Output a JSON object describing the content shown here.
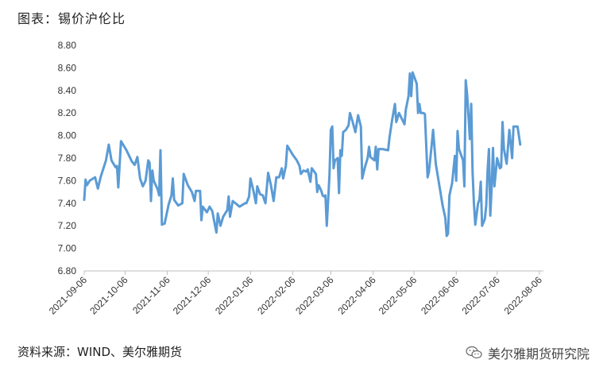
{
  "header": {
    "title": "图表：锡价沪伦比"
  },
  "footer": {
    "source": "资料来源：WIND、美尔雅期货",
    "watermark": "美尔雅期货研究院",
    "watermark_icon": "wechat-icon"
  },
  "colors": {
    "line": "#5B9BD5",
    "axis": "#BFBFBF",
    "text": "#333333"
  },
  "chart_data": {
    "type": "line",
    "title": "",
    "xlabel": "",
    "ylabel": "",
    "ylim": [
      6.8,
      8.8
    ],
    "yticks": [
      "6.80",
      "7.00",
      "7.20",
      "7.40",
      "7.60",
      "7.80",
      "8.00",
      "8.20",
      "8.40",
      "8.60",
      "8.80"
    ],
    "xticks": [
      "2021-09-06",
      "2021-10-06",
      "2021-11-06",
      "2021-12-06",
      "2022-01-06",
      "2022-02-06",
      "2022-03-06",
      "2022-04-06",
      "2022-05-06",
      "2022-06-06",
      "2022-07-06",
      "2022-08-06"
    ],
    "xlim": [
      "2021-09-06",
      "2022-08-09"
    ],
    "grid": false,
    "series": [
      {
        "points": [
          [
            "2021-09-06",
            7.43
          ],
          [
            "2021-09-07",
            7.61
          ],
          [
            "2021-09-08",
            7.56
          ],
          [
            "2021-09-10",
            7.6
          ],
          [
            "2021-09-14",
            7.63
          ],
          [
            "2021-09-16",
            7.53
          ],
          [
            "2021-09-18",
            7.63
          ],
          [
            "2021-09-22",
            7.78
          ],
          [
            "2021-09-24",
            7.92
          ],
          [
            "2021-09-26",
            7.78
          ],
          [
            "2021-09-29",
            7.72
          ],
          [
            "2021-09-30",
            7.73
          ],
          [
            "2021-10-01",
            7.54
          ],
          [
            "2021-10-03",
            7.95
          ],
          [
            "2021-10-07",
            7.87
          ],
          [
            "2021-10-11",
            7.77
          ],
          [
            "2021-10-13",
            7.74
          ],
          [
            "2021-10-15",
            7.81
          ],
          [
            "2021-10-17",
            7.62
          ],
          [
            "2021-10-19",
            7.55
          ],
          [
            "2021-10-21",
            7.6
          ],
          [
            "2021-10-23",
            7.78
          ],
          [
            "2021-10-24",
            7.76
          ],
          [
            "2021-10-25",
            7.42
          ],
          [
            "2021-10-26",
            7.69
          ],
          [
            "2021-10-27",
            7.6
          ],
          [
            "2021-10-30",
            7.52
          ],
          [
            "2021-10-31",
            7.47
          ],
          [
            "2021-11-01",
            7.87
          ],
          [
            "2021-11-02",
            7.21
          ],
          [
            "2021-11-04",
            7.22
          ],
          [
            "2021-11-07",
            7.39
          ],
          [
            "2021-11-09",
            7.47
          ],
          [
            "2021-11-10",
            7.62
          ],
          [
            "2021-11-11",
            7.43
          ],
          [
            "2021-11-14",
            7.38
          ],
          [
            "2021-11-17",
            7.4
          ],
          [
            "2021-11-18",
            7.66
          ],
          [
            "2021-11-21",
            7.56
          ],
          [
            "2021-11-24",
            7.5
          ],
          [
            "2021-11-26",
            7.42
          ],
          [
            "2021-11-27",
            7.51
          ],
          [
            "2021-11-30",
            7.51
          ],
          [
            "2021-12-01",
            7.25
          ],
          [
            "2021-12-02",
            7.37
          ],
          [
            "2021-12-05",
            7.32
          ],
          [
            "2021-12-07",
            7.37
          ],
          [
            "2021-12-09",
            7.33
          ],
          [
            "2021-12-11",
            7.2
          ],
          [
            "2021-12-12",
            7.14
          ],
          [
            "2021-12-13",
            7.31
          ],
          [
            "2021-12-15",
            7.2
          ],
          [
            "2021-12-17",
            7.28
          ],
          [
            "2021-12-20",
            7.34
          ],
          [
            "2021-12-21",
            7.46
          ],
          [
            "2021-12-22",
            7.28
          ],
          [
            "2021-12-24",
            7.42
          ],
          [
            "2021-12-27",
            7.39
          ],
          [
            "2021-12-29",
            7.37
          ],
          [
            "2022-01-02",
            7.4
          ],
          [
            "2022-01-03",
            7.4
          ],
          [
            "2022-01-05",
            7.46
          ],
          [
            "2022-01-06",
            7.62
          ],
          [
            "2022-01-08",
            7.52
          ],
          [
            "2022-01-10",
            7.4
          ],
          [
            "2022-01-11",
            7.55
          ],
          [
            "2022-01-13",
            7.48
          ],
          [
            "2022-01-15",
            7.47
          ],
          [
            "2022-01-17",
            7.4
          ],
          [
            "2022-01-19",
            7.67
          ],
          [
            "2022-01-21",
            7.56
          ],
          [
            "2022-01-23",
            7.42
          ],
          [
            "2022-01-25",
            7.63
          ],
          [
            "2022-01-27",
            7.63
          ],
          [
            "2022-01-29",
            7.71
          ],
          [
            "2022-01-30",
            7.62
          ],
          [
            "2022-02-01",
            7.73
          ],
          [
            "2022-02-02",
            7.91
          ],
          [
            "2022-02-06",
            7.83
          ],
          [
            "2022-02-09",
            7.78
          ],
          [
            "2022-02-11",
            7.73
          ],
          [
            "2022-02-12",
            7.66
          ],
          [
            "2022-02-14",
            7.69
          ],
          [
            "2022-02-16",
            7.68
          ],
          [
            "2022-02-17",
            7.7
          ],
          [
            "2022-02-19",
            7.59
          ],
          [
            "2022-02-20",
            7.71
          ],
          [
            "2022-02-23",
            7.66
          ],
          [
            "2022-02-24",
            7.5
          ],
          [
            "2022-02-25",
            7.56
          ],
          [
            "2022-02-27",
            7.51
          ],
          [
            "2022-02-28",
            7.47
          ],
          [
            "2022-03-01",
            7.46
          ],
          [
            "2022-03-02",
            7.47
          ],
          [
            "2022-03-03",
            7.2
          ],
          [
            "2022-03-05",
            7.65
          ],
          [
            "2022-03-06",
            8.05
          ],
          [
            "2022-03-07",
            8.08
          ],
          [
            "2022-03-08",
            7.71
          ],
          [
            "2022-03-09",
            7.78
          ],
          [
            "2022-03-11",
            7.8
          ],
          [
            "2022-03-12",
            7.49
          ],
          [
            "2022-03-13",
            7.87
          ],
          [
            "2022-03-14",
            7.82
          ],
          [
            "2022-03-15",
            8.03
          ],
          [
            "2022-03-17",
            8.05
          ],
          [
            "2022-03-19",
            8.09
          ],
          [
            "2022-03-20",
            8.2
          ],
          [
            "2022-03-22",
            8.12
          ],
          [
            "2022-03-24",
            8.03
          ],
          [
            "2022-03-26",
            8.18
          ],
          [
            "2022-03-28",
            8.08
          ],
          [
            "2022-03-29",
            7.62
          ],
          [
            "2022-03-31",
            7.72
          ],
          [
            "2022-04-02",
            7.8
          ],
          [
            "2022-04-03",
            7.9
          ],
          [
            "2022-04-04",
            7.81
          ],
          [
            "2022-04-07",
            7.78
          ],
          [
            "2022-04-08",
            7.9
          ],
          [
            "2022-04-09",
            7.7
          ],
          [
            "2022-04-10",
            7.88
          ],
          [
            "2022-04-13",
            7.88
          ],
          [
            "2022-04-17",
            7.87
          ],
          [
            "2022-04-18",
            7.98
          ],
          [
            "2022-04-20",
            8.14
          ],
          [
            "2022-04-22",
            8.28
          ],
          [
            "2022-04-23",
            8.12
          ],
          [
            "2022-04-25",
            8.2
          ],
          [
            "2022-04-29",
            8.1
          ],
          [
            "2022-04-30",
            8.23
          ],
          [
            "2022-05-02",
            8.35
          ],
          [
            "2022-05-03",
            8.55
          ],
          [
            "2022-05-04",
            8.35
          ],
          [
            "2022-05-05",
            8.56
          ],
          [
            "2022-05-08",
            8.46
          ],
          [
            "2022-05-09",
            8.2
          ],
          [
            "2022-05-10",
            8.28
          ],
          [
            "2022-05-11",
            8.2
          ],
          [
            "2022-05-13",
            8.2
          ],
          [
            "2022-05-14",
            8.19
          ],
          [
            "2022-05-16",
            7.63
          ],
          [
            "2022-05-17",
            7.68
          ],
          [
            "2022-05-19",
            7.92
          ],
          [
            "2022-05-20",
            8.05
          ],
          [
            "2022-05-22",
            7.75
          ],
          [
            "2022-05-27",
            7.38
          ],
          [
            "2022-05-29",
            7.27
          ],
          [
            "2022-05-30",
            7.11
          ],
          [
            "2022-05-31",
            7.13
          ],
          [
            "2022-06-01",
            7.47
          ],
          [
            "2022-06-03",
            7.58
          ],
          [
            "2022-06-05",
            7.82
          ],
          [
            "2022-06-06",
            7.6
          ],
          [
            "2022-06-07",
            8.04
          ],
          [
            "2022-06-08",
            7.88
          ],
          [
            "2022-06-11",
            7.78
          ],
          [
            "2022-06-12",
            7.55
          ],
          [
            "2022-06-13",
            8.49
          ],
          [
            "2022-06-14",
            8.36
          ],
          [
            "2022-06-16",
            7.97
          ],
          [
            "2022-06-17",
            8.28
          ],
          [
            "2022-06-18",
            7.68
          ],
          [
            "2022-06-19",
            7.4
          ],
          [
            "2022-06-20",
            7.21
          ],
          [
            "2022-06-22",
            7.4
          ],
          [
            "2022-06-23",
            7.43
          ],
          [
            "2022-06-24",
            7.59
          ],
          [
            "2022-06-25",
            7.2
          ],
          [
            "2022-06-27",
            7.26
          ],
          [
            "2022-06-28",
            7.38
          ],
          [
            "2022-06-29",
            7.69
          ],
          [
            "2022-06-30",
            7.88
          ],
          [
            "2022-07-01",
            7.29
          ],
          [
            "2022-07-02",
            7.54
          ],
          [
            "2022-07-03",
            7.89
          ],
          [
            "2022-07-04",
            7.55
          ],
          [
            "2022-07-06",
            7.8
          ],
          [
            "2022-07-08",
            7.71
          ],
          [
            "2022-07-09",
            7.72
          ],
          [
            "2022-07-10",
            8.12
          ],
          [
            "2022-07-11",
            7.88
          ],
          [
            "2022-07-13",
            7.75
          ],
          [
            "2022-07-15",
            8.05
          ],
          [
            "2022-07-17",
            7.8
          ],
          [
            "2022-07-18",
            8.08
          ],
          [
            "2022-07-21",
            8.08
          ],
          [
            "2022-07-23",
            7.92
          ]
        ]
      }
    ]
  }
}
